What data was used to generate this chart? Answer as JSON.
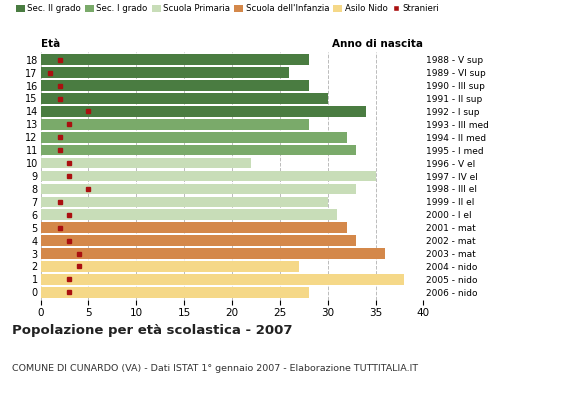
{
  "ages": [
    18,
    17,
    16,
    15,
    14,
    13,
    12,
    11,
    10,
    9,
    8,
    7,
    6,
    5,
    4,
    3,
    2,
    1,
    0
  ],
  "bar_values": [
    28,
    26,
    28,
    30,
    34,
    28,
    32,
    33,
    22,
    35,
    33,
    30,
    31,
    32,
    33,
    36,
    27,
    38,
    28
  ],
  "stranieri": [
    2,
    1,
    2,
    2,
    5,
    3,
    2,
    2,
    3,
    3,
    5,
    2,
    3,
    2,
    3,
    4,
    4,
    3,
    3
  ],
  "bar_colors": [
    "#4a7c41",
    "#4a7c41",
    "#4a7c41",
    "#4a7c41",
    "#4a7c41",
    "#7aaa6a",
    "#7aaa6a",
    "#7aaa6a",
    "#c8ddb8",
    "#c8ddb8",
    "#c8ddb8",
    "#c8ddb8",
    "#c8ddb8",
    "#d4884a",
    "#d4884a",
    "#d4884a",
    "#f5d888",
    "#f5d888",
    "#f5d888"
  ],
  "anno_labels": [
    "1988 - V sup",
    "1989 - VI sup",
    "1990 - III sup",
    "1991 - II sup",
    "1992 - I sup",
    "1993 - III med",
    "1994 - II med",
    "1995 - I med",
    "1996 - V el",
    "1997 - IV el",
    "1998 - III el",
    "1999 - II el",
    "2000 - I el",
    "2001 - mat",
    "2002 - mat",
    "2003 - mat",
    "2004 - nido",
    "2005 - nido",
    "2006 - nido"
  ],
  "legend_labels": [
    "Sec. II grado",
    "Sec. I grado",
    "Scuola Primaria",
    "Scuola dell'Infanzia",
    "Asilo Nido",
    "Stranieri"
  ],
  "legend_colors": [
    "#4a7c41",
    "#7aaa6a",
    "#c8ddb8",
    "#d4884a",
    "#f5d888",
    "#aa1010"
  ],
  "stranieri_color": "#aa1010",
  "title1": "Popolazione per età scolastica - 2007",
  "title2": "COMUNE DI CUNARDO (VA) - Dati ISTAT 1° gennaio 2007 - Elaborazione TUTTITALIA.IT",
  "eta_label": "Età",
  "anno_label": "Anno di nascita",
  "xlim": [
    0,
    40
  ],
  "xticks": [
    0,
    5,
    10,
    15,
    20,
    25,
    30,
    35,
    40
  ],
  "bg_color": "#ffffff",
  "grid_color": "#bbbbbb",
  "bar_height": 0.82
}
